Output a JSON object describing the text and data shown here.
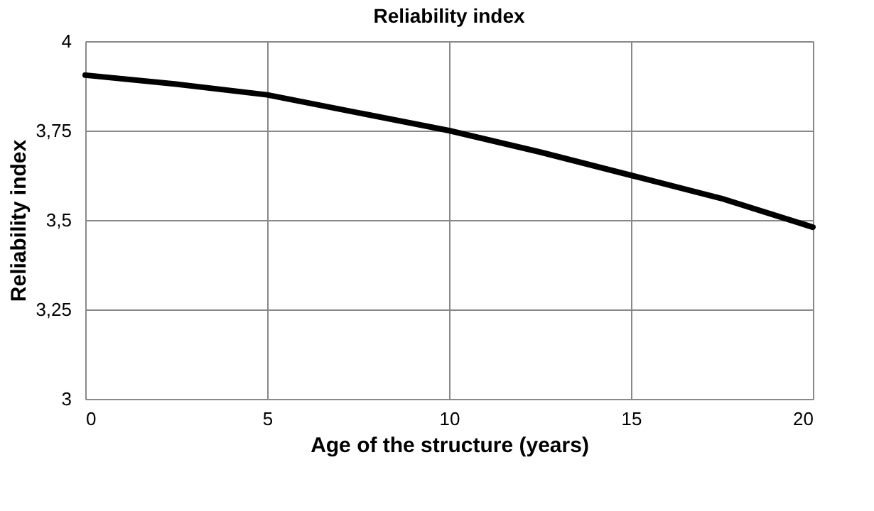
{
  "chart_data": {
    "type": "line",
    "title": "Reliability index",
    "xlabel": "Age of the structure (years)",
    "ylabel": "Reliability   index",
    "x": [
      0,
      2.5,
      5,
      7.5,
      10,
      12.5,
      15,
      17.5,
      20
    ],
    "series": [
      {
        "color": "#000000",
        "values": [
          3.905,
          3.88,
          3.85,
          3.8,
          3.75,
          3.69,
          3.625,
          3.56,
          3.48
        ]
      }
    ],
    "xlim": [
      0,
      20
    ],
    "xticks": [
      0,
      5,
      10,
      15,
      20
    ],
    "ylim": [
      3,
      4
    ],
    "yticks": [
      3,
      {
        "value": 3.25,
        "label": "3,25"
      },
      {
        "value": 3.5,
        "label": "3,5"
      },
      {
        "value": 3.75,
        "label": "3,75"
      },
      4
    ],
    "grid": true,
    "marker": "none",
    "line_style": "solid"
  }
}
